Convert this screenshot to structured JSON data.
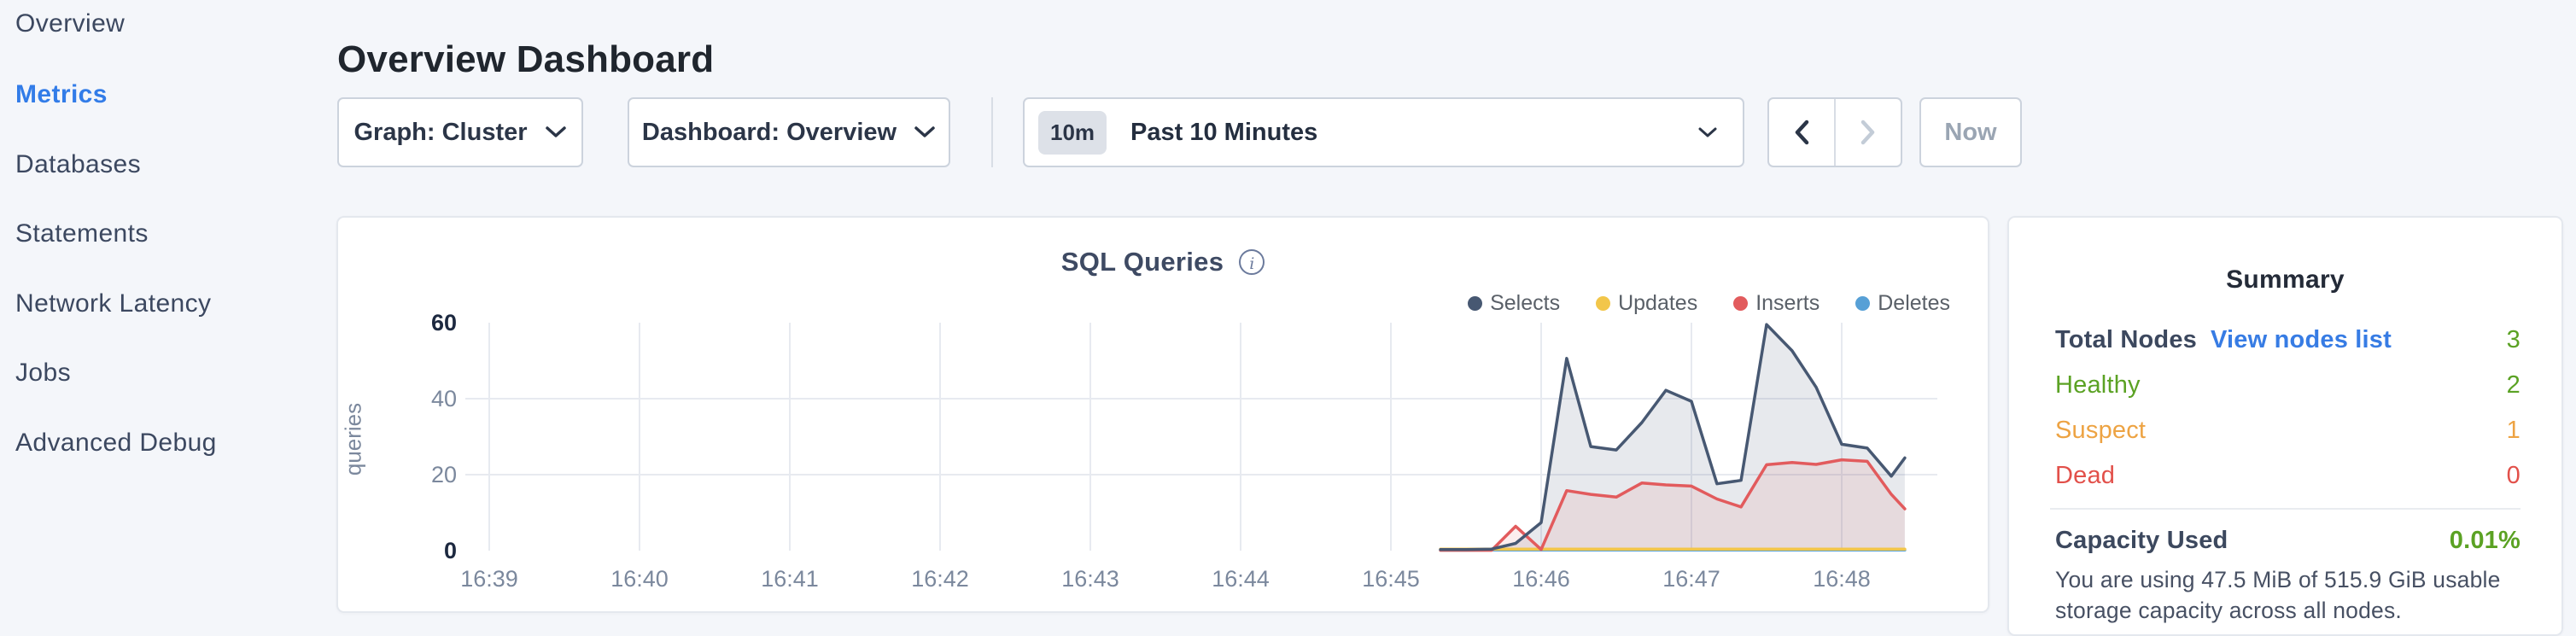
{
  "sidebar": {
    "items": [
      {
        "label": "Overview",
        "active": false
      },
      {
        "label": "Metrics",
        "active": true
      },
      {
        "label": "Databases",
        "active": false
      },
      {
        "label": "Statements",
        "active": false
      },
      {
        "label": "Network Latency",
        "active": false
      },
      {
        "label": "Jobs",
        "active": false
      },
      {
        "label": "Advanced Debug",
        "active": false
      }
    ],
    "active_color": "#327ce8"
  },
  "header": {
    "title": "Overview Dashboard"
  },
  "toolbar": {
    "graph_dropdown": {
      "label": "Graph: Cluster"
    },
    "dashboard_dropdown": {
      "label": "Dashboard: Overview"
    },
    "time_selector": {
      "badge": "10m",
      "label": "Past 10 Minutes"
    },
    "now_button": "Now",
    "prev_arrow_color": "#2b3547",
    "next_arrow_color": "#c3ccd7"
  },
  "chart_card": {
    "title": "SQL Queries",
    "info_icon_glyph": "i"
  },
  "chart_data": {
    "type": "area",
    "title": "SQL Queries",
    "ylabel": "queries",
    "ylim": [
      0,
      60
    ],
    "yticks": [
      0,
      20,
      40,
      60
    ],
    "bold_yticks": [
      0,
      60
    ],
    "xticks": [
      "16:39",
      "16:40",
      "16:41",
      "16:42",
      "16:43",
      "16:44",
      "16:45",
      "16:46",
      "16:47",
      "16:48"
    ],
    "x_unit": "minutes after 16:39, points every 10s",
    "grid": true,
    "legend_position": "top-right",
    "series": [
      {
        "name": "Selects",
        "color": "#475872",
        "fill": "rgba(71,88,114,0.13)",
        "points": [
          [
            6.33,
            0.3
          ],
          [
            6.5,
            0.3
          ],
          [
            6.67,
            0.4
          ],
          [
            6.83,
            1.9
          ],
          [
            7.0,
            7.4
          ],
          [
            7.17,
            50.6
          ],
          [
            7.33,
            27.4
          ],
          [
            7.5,
            26.5
          ],
          [
            7.67,
            33.7
          ],
          [
            7.83,
            42.2
          ],
          [
            8.0,
            39.3
          ],
          [
            8.17,
            17.6
          ],
          [
            8.33,
            18.5
          ],
          [
            8.5,
            59.5
          ],
          [
            8.67,
            52.6
          ],
          [
            8.83,
            43.0
          ],
          [
            9.0,
            28.0
          ],
          [
            9.17,
            27.0
          ],
          [
            9.33,
            19.6
          ],
          [
            9.42,
            24.4
          ]
        ]
      },
      {
        "name": "Updates",
        "color": "#f2c64a",
        "fill": null,
        "points": [
          [
            6.33,
            0.4
          ],
          [
            9.42,
            0.4
          ]
        ]
      },
      {
        "name": "Inserts",
        "color": "#e25b5d",
        "fill": "rgba(226,91,93,0.10)",
        "points": [
          [
            6.33,
            0.1
          ],
          [
            6.5,
            0.1
          ],
          [
            6.67,
            0.1
          ],
          [
            6.83,
            6.4
          ],
          [
            7.0,
            0.3
          ],
          [
            7.17,
            15.8
          ],
          [
            7.33,
            14.8
          ],
          [
            7.5,
            14.1
          ],
          [
            7.67,
            17.8
          ],
          [
            7.83,
            17.3
          ],
          [
            8.0,
            17.0
          ],
          [
            8.17,
            13.6
          ],
          [
            8.33,
            11.5
          ],
          [
            8.5,
            22.6
          ],
          [
            8.67,
            23.2
          ],
          [
            8.83,
            22.7
          ],
          [
            9.0,
            23.9
          ],
          [
            9.17,
            23.5
          ],
          [
            9.33,
            14.8
          ],
          [
            9.42,
            11.0
          ]
        ]
      },
      {
        "name": "Deletes",
        "color": "#57a0d6",
        "fill": null,
        "points": [
          [
            6.33,
            0.15
          ],
          [
            9.42,
            0.15
          ]
        ]
      }
    ]
  },
  "summary": {
    "title": "Summary",
    "rows": [
      {
        "label": "Total Nodes",
        "link": "View nodes list",
        "value": "3",
        "label_color": "#3c485e",
        "value_color": "#5ba224",
        "bold": true
      },
      {
        "label": "Healthy",
        "link": null,
        "value": "2",
        "label_color": "#5ba224",
        "value_color": "#5ba224",
        "bold": false
      },
      {
        "label": "Suspect",
        "link": null,
        "value": "1",
        "label_color": "#eda343",
        "value_color": "#eda343",
        "bold": false
      },
      {
        "label": "Dead",
        "link": null,
        "value": "0",
        "label_color": "#e2504a",
        "value_color": "#e2504a",
        "bold": false
      }
    ],
    "capacity": {
      "label": "Capacity Used",
      "value": "0.01%",
      "value_color": "#5ba224",
      "description": "You are using 47.5 MiB of 515.9 GiB usable storage capacity across all nodes."
    }
  }
}
